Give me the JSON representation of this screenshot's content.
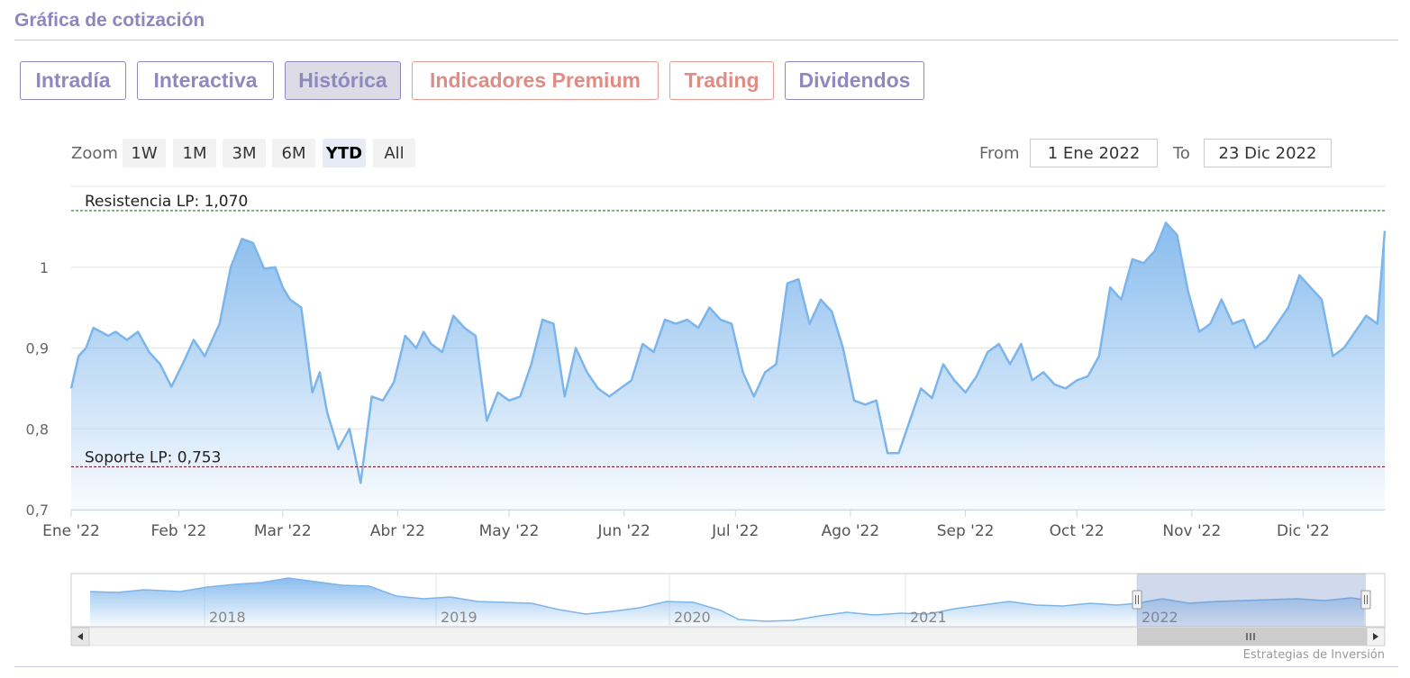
{
  "header": {
    "title": "Gráfica de cotización"
  },
  "tabs": [
    {
      "label": "Intradía",
      "active": false,
      "premium": false
    },
    {
      "label": "Interactiva",
      "active": false,
      "premium": false
    },
    {
      "label": "Histórica",
      "active": true,
      "premium": false
    },
    {
      "label": "Indicadores Premium",
      "active": false,
      "premium": true
    },
    {
      "label": "Trading",
      "active": false,
      "premium": true
    },
    {
      "label": "Dividendos",
      "active": false,
      "premium": false
    }
  ],
  "zoom": {
    "label": "Zoom",
    "buttons": [
      "1W",
      "1M",
      "3M",
      "6M",
      "YTD",
      "All"
    ],
    "selected": "YTD"
  },
  "range": {
    "from_label": "From",
    "from_value": "1 Ene 2022",
    "to_label": "To",
    "to_value": "23 Dic 2022"
  },
  "credit": "Estrategias de Inversión",
  "chart_data": {
    "type": "area",
    "title": "",
    "xlabel": "",
    "ylabel": "",
    "ylim": [
      0.7,
      1.1
    ],
    "y_ticks": [
      "0,7",
      "0,8",
      "0,9",
      "1"
    ],
    "x_ticks": [
      "Ene '22",
      "Feb '22",
      "Mar '22",
      "Abr '22",
      "May '22",
      "Jun '22",
      "Jul '22",
      "Ago '22",
      "Sep '22",
      "Oct '22",
      "Nov '22",
      "Dic '22"
    ],
    "grid": true,
    "line_color": "#7cb5ec",
    "reference_lines": [
      {
        "label": "Resistencia LP: 1,070",
        "value": 1.07,
        "color": "#1b7a1b"
      },
      {
        "label": "Soporte LP: 0,753",
        "value": 0.753,
        "color": "#8b1a2b"
      }
    ],
    "series": [
      {
        "x": [
          "2022-01-03",
          "2022-01-05",
          "2022-01-07",
          "2022-01-09",
          "2022-01-11",
          "2022-01-13",
          "2022-01-15",
          "2022-01-18",
          "2022-01-21",
          "2022-01-24",
          "2022-01-27",
          "2022-01-30",
          "2022-02-02",
          "2022-02-05",
          "2022-02-08",
          "2022-02-10",
          "2022-02-12",
          "2022-02-15",
          "2022-02-18",
          "2022-02-21",
          "2022-02-24",
          "2022-02-27",
          "2022-03-01",
          "2022-03-03",
          "2022-03-06",
          "2022-03-09",
          "2022-03-11",
          "2022-03-13",
          "2022-03-16",
          "2022-03-19",
          "2022-03-22",
          "2022-03-25",
          "2022-03-28",
          "2022-03-31",
          "2022-04-03",
          "2022-04-06",
          "2022-04-08",
          "2022-04-10",
          "2022-04-13",
          "2022-04-16",
          "2022-04-19",
          "2022-04-22",
          "2022-04-25",
          "2022-04-28",
          "2022-05-01",
          "2022-05-04",
          "2022-05-07",
          "2022-05-10",
          "2022-05-13",
          "2022-05-16",
          "2022-05-19",
          "2022-05-22",
          "2022-05-25",
          "2022-05-28",
          "2022-05-31",
          "2022-06-03",
          "2022-06-06",
          "2022-06-09",
          "2022-06-12",
          "2022-06-15",
          "2022-06-18",
          "2022-06-21",
          "2022-06-24",
          "2022-06-27",
          "2022-06-30",
          "2022-07-03",
          "2022-07-06",
          "2022-07-09",
          "2022-07-12",
          "2022-07-15",
          "2022-07-18",
          "2022-07-21",
          "2022-07-24",
          "2022-07-27",
          "2022-07-30",
          "2022-08-02",
          "2022-08-05",
          "2022-08-08",
          "2022-08-11",
          "2022-08-14",
          "2022-08-17",
          "2022-08-20",
          "2022-08-23",
          "2022-08-26",
          "2022-08-29",
          "2022-09-01",
          "2022-09-04",
          "2022-09-07",
          "2022-09-10",
          "2022-09-13",
          "2022-09-16",
          "2022-09-19",
          "2022-09-22",
          "2022-09-25",
          "2022-09-28",
          "2022-10-01",
          "2022-10-04",
          "2022-10-07",
          "2022-10-10",
          "2022-10-13",
          "2022-10-16",
          "2022-10-19",
          "2022-10-22",
          "2022-10-25",
          "2022-10-28",
          "2022-10-31",
          "2022-11-03",
          "2022-11-06",
          "2022-11-09",
          "2022-11-12",
          "2022-11-15",
          "2022-11-18",
          "2022-11-21",
          "2022-11-24",
          "2022-11-27",
          "2022-11-30",
          "2022-12-03",
          "2022-12-06",
          "2022-12-09",
          "2022-12-12",
          "2022-12-15",
          "2022-12-18",
          "2022-12-21",
          "2022-12-23"
        ],
        "values": [
          0.85,
          0.89,
          0.9,
          0.925,
          0.92,
          0.915,
          0.92,
          0.91,
          0.92,
          0.895,
          0.88,
          0.852,
          0.88,
          0.91,
          0.89,
          0.91,
          0.93,
          1.0,
          1.035,
          1.03,
          0.998,
          1.0,
          0.975,
          0.96,
          0.95,
          0.845,
          0.87,
          0.82,
          0.775,
          0.8,
          0.733,
          0.84,
          0.835,
          0.858,
          0.915,
          0.9,
          0.92,
          0.905,
          0.895,
          0.94,
          0.925,
          0.915,
          0.81,
          0.845,
          0.835,
          0.84,
          0.88,
          0.935,
          0.93,
          0.84,
          0.9,
          0.87,
          0.85,
          0.84,
          0.85,
          0.86,
          0.905,
          0.895,
          0.935,
          0.93,
          0.935,
          0.925,
          0.95,
          0.935,
          0.93,
          0.87,
          0.84,
          0.87,
          0.88,
          0.98,
          0.985,
          0.93,
          0.96,
          0.945,
          0.9,
          0.835,
          0.83,
          0.835,
          0.77,
          0.77,
          0.81,
          0.85,
          0.838,
          0.88,
          0.86,
          0.845,
          0.865,
          0.895,
          0.905,
          0.88,
          0.905,
          0.86,
          0.87,
          0.855,
          0.85,
          0.86,
          0.865,
          0.89,
          0.975,
          0.96,
          1.01,
          1.005,
          1.02,
          1.055,
          1.04,
          0.97,
          0.92,
          0.93,
          0.96,
          0.93,
          0.935,
          0.9,
          0.91,
          0.93,
          0.95,
          0.99,
          0.975,
          0.96,
          0.89,
          0.9,
          0.92,
          0.94,
          0.93,
          1.045
        ]
      }
    ],
    "navigator": {
      "x_ticks": [
        "2018",
        "2019",
        "2020",
        "2021",
        "2022"
      ],
      "range_start": "2022-01-01",
      "range_end": "2022-12-23"
    }
  }
}
